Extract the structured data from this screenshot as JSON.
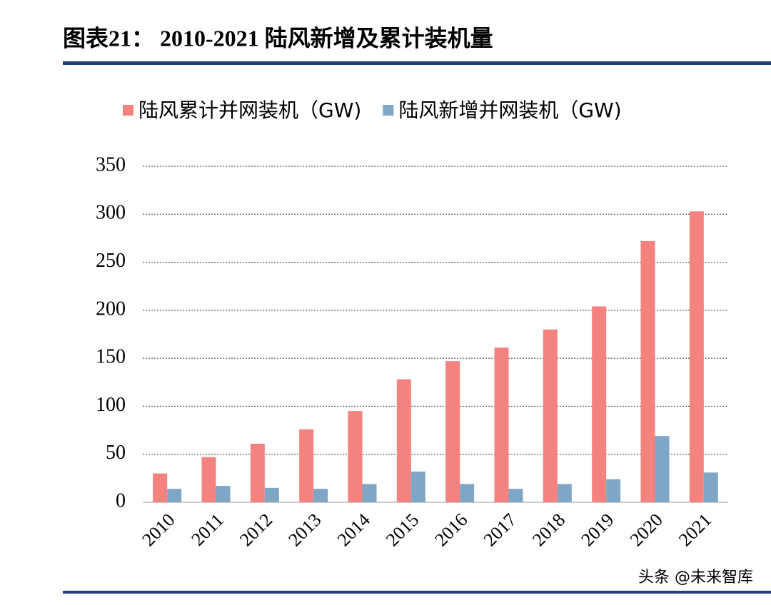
{
  "chart_data": {
    "type": "bar",
    "title": "图表21： 2010-2021 陆风新增及累计装机量",
    "categories": [
      "2010",
      "2011",
      "2012",
      "2013",
      "2014",
      "2015",
      "2016",
      "2017",
      "2018",
      "2019",
      "2020",
      "2021"
    ],
    "series": [
      {
        "name": "陆风累计并网装机（GW)",
        "color": "#f4827f",
        "values": [
          30,
          47,
          61,
          76,
          95,
          128,
          147,
          161,
          180,
          204,
          272,
          303
        ]
      },
      {
        "name": "陆风新增并网装机（GW)",
        "color": "#80a6c6",
        "values": [
          14,
          17,
          15,
          14,
          19,
          32,
          19,
          14,
          19,
          24,
          69,
          31
        ]
      }
    ],
    "ylim": [
      0,
      350
    ],
    "yticks": [
      0,
      50,
      100,
      150,
      200,
      250,
      300,
      350
    ],
    "grid": true,
    "watermark": "头条 @未来智库"
  }
}
